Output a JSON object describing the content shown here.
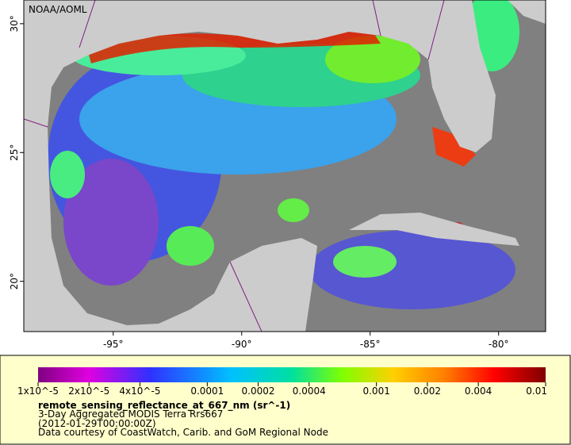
{
  "map": {
    "credit": "NOAA/AOML",
    "xlim": [
      -98.48,
      -78.17
    ],
    "ylim": [
      18.05,
      30.92
    ],
    "xticks": [
      {
        "value": -95,
        "label": "-95°"
      },
      {
        "value": -90,
        "label": "-90°"
      },
      {
        "value": -85,
        "label": "-85°"
      },
      {
        "value": -80,
        "label": "-80°"
      }
    ],
    "yticks": [
      {
        "value": 20,
        "label": "20°"
      },
      {
        "value": 25,
        "label": "25°"
      },
      {
        "value": 30,
        "label": "30°"
      }
    ]
  },
  "legend": {
    "colorbar": {
      "lim": [
        1e-05,
        0.01
      ],
      "log": true,
      "ticks": [
        {
          "value": 1e-05,
          "label": "1x10^-5"
        },
        {
          "value": 2e-05,
          "label": "2x10^-5"
        },
        {
          "value": 4e-05,
          "label": "4x10^-5"
        },
        0.0001,
        0.0002,
        0.0004,
        0.001,
        0.002,
        0.004,
        0.01
      ]
    },
    "title": "remote_sensing_reflectance_at_667_nm (sr^-1)",
    "lines": [
      "3-Day Aggregated MODIS Terra Rrs667",
      "(2012-01-29T00:00:00Z)",
      "Data courtesy of CoastWatch, Carib. and GoM Regional Node"
    ]
  }
}
